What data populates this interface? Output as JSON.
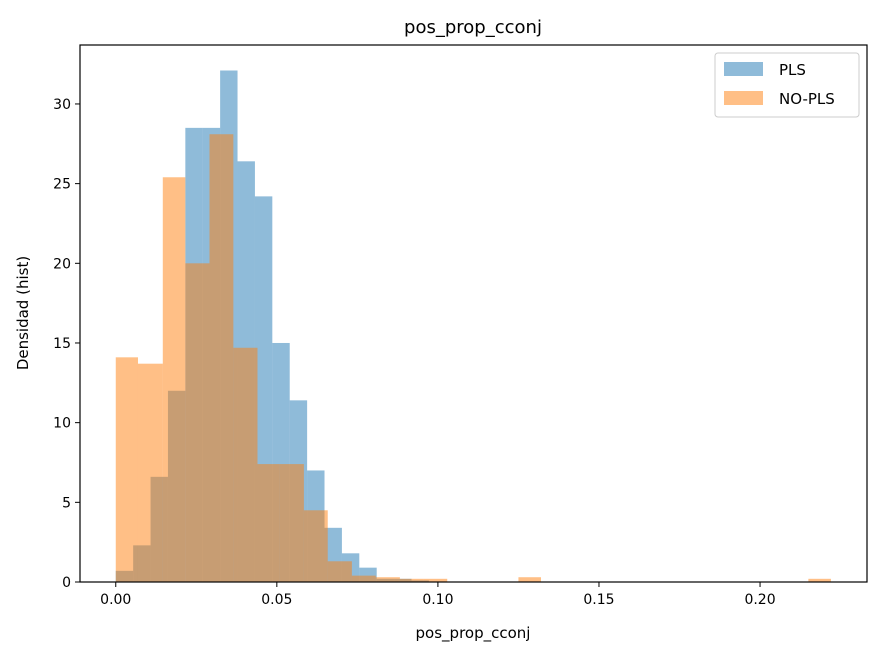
{
  "chart_data": {
    "type": "histogram",
    "title": "pos_prop_cconj",
    "xlabel": "pos_prop_cconj",
    "ylabel": "Densidad (hist)",
    "xlim": [
      -0.0111,
      0.2332
    ],
    "ylim": [
      0,
      33.7
    ],
    "xticks": [
      0.0,
      0.05,
      0.1,
      0.15,
      0.2
    ],
    "xtick_labels": [
      "0.00",
      "0.05",
      "0.10",
      "0.15",
      "0.20"
    ],
    "yticks": [
      0,
      5,
      10,
      15,
      20,
      25,
      30
    ],
    "ytick_labels": [
      "0",
      "5",
      "10",
      "15",
      "20",
      "25",
      "30"
    ],
    "legend_position": "top-right",
    "series": [
      {
        "name": "PLS",
        "color": "#1f77b4",
        "opacity": 0.5,
        "bins": [
          [
            0.0,
            0.0054,
            0.7
          ],
          [
            0.0054,
            0.0108,
            2.3
          ],
          [
            0.0108,
            0.0162,
            6.6
          ],
          [
            0.0162,
            0.0216,
            12.0
          ],
          [
            0.0216,
            0.027,
            28.5
          ],
          [
            0.027,
            0.0324,
            28.5
          ],
          [
            0.0324,
            0.0378,
            32.1
          ],
          [
            0.0378,
            0.0432,
            26.4
          ],
          [
            0.0432,
            0.0486,
            24.2
          ],
          [
            0.0486,
            0.054,
            15.0
          ],
          [
            0.054,
            0.0594,
            11.4
          ],
          [
            0.0594,
            0.0648,
            7.0
          ],
          [
            0.0648,
            0.0702,
            3.4
          ],
          [
            0.0702,
            0.0756,
            1.8
          ],
          [
            0.0756,
            0.081,
            0.9
          ],
          [
            0.081,
            0.0864,
            0.2
          ],
          [
            0.0864,
            0.0918,
            0.2
          ],
          [
            0.0918,
            0.0972,
            0.1
          ]
        ]
      },
      {
        "name": "NO-PLS",
        "color": "#ff7f0e",
        "opacity": 0.5,
        "bins": [
          [
            0.0,
            0.0069,
            14.1
          ],
          [
            0.0069,
            0.0146,
            13.7
          ],
          [
            0.0146,
            0.0216,
            25.4
          ],
          [
            0.0216,
            0.0291,
            20.0
          ],
          [
            0.0291,
            0.0365,
            28.1
          ],
          [
            0.0365,
            0.044,
            14.7
          ],
          [
            0.044,
            0.0509,
            7.4
          ],
          [
            0.0509,
            0.0584,
            7.4
          ],
          [
            0.0584,
            0.0658,
            4.5
          ],
          [
            0.0658,
            0.0733,
            1.3
          ],
          [
            0.0733,
            0.0807,
            0.4
          ],
          [
            0.0807,
            0.0882,
            0.3
          ],
          [
            0.0882,
            0.0954,
            0.2
          ],
          [
            0.0954,
            0.1029,
            0.2
          ],
          [
            0.125,
            0.132,
            0.3
          ],
          [
            0.215,
            0.222,
            0.2
          ]
        ]
      }
    ]
  }
}
